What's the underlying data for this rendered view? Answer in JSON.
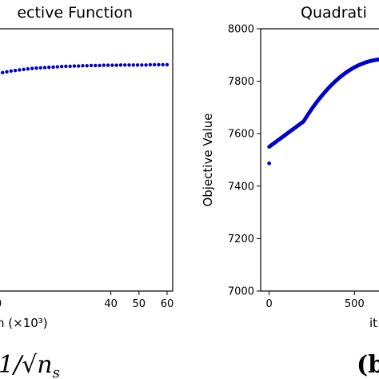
{
  "chart_data": [
    {
      "type": "scatter",
      "title": "ective Function",
      "xlabel": "n (×10³)",
      "xticks": [
        "0",
        "40",
        "50",
        "60"
      ],
      "xlim": [
        0,
        62
      ],
      "ylim": [
        0,
        1
      ],
      "series_color": "#0000cc",
      "x": [
        0,
        1.5,
        3,
        4.5,
        6,
        7.5,
        9,
        10.5,
        12,
        13.5,
        15,
        16.5,
        18,
        19.5,
        21,
        22.5,
        24,
        25.5,
        27,
        28.5,
        30,
        31.5,
        33,
        34.5,
        36,
        37.5,
        39,
        40.5,
        42,
        43.5,
        45,
        46.5,
        48,
        49.5,
        51,
        52.5,
        54,
        55.5,
        57,
        58.5,
        60
      ],
      "y": [
        0.83,
        0.833,
        0.836,
        0.839,
        0.841,
        0.843,
        0.845,
        0.847,
        0.849,
        0.85,
        0.851,
        0.852,
        0.853,
        0.854,
        0.855,
        0.856,
        0.857,
        0.857,
        0.858,
        0.858,
        0.859,
        0.859,
        0.86,
        0.86,
        0.86,
        0.861,
        0.861,
        0.861,
        0.861,
        0.862,
        0.862,
        0.862,
        0.862,
        0.862,
        0.862,
        0.862,
        0.863,
        0.863,
        0.863,
        0.863,
        0.863
      ]
    },
    {
      "type": "scatter",
      "title": "Quadrati",
      "xlabel": "it",
      "ylabel": "Objective Value",
      "xticks": [
        "0",
        "500"
      ],
      "yticks": [
        "7000",
        "7200",
        "7400",
        "7600",
        "7800",
        "8000"
      ],
      "xlim": [
        -50,
        700
      ],
      "ylim": [
        7000,
        8000
      ],
      "series_color": "#0000cc"
    }
  ],
  "caption_left": "1/√n",
  "caption_left_sub": "s",
  "caption_right": "(b"
}
